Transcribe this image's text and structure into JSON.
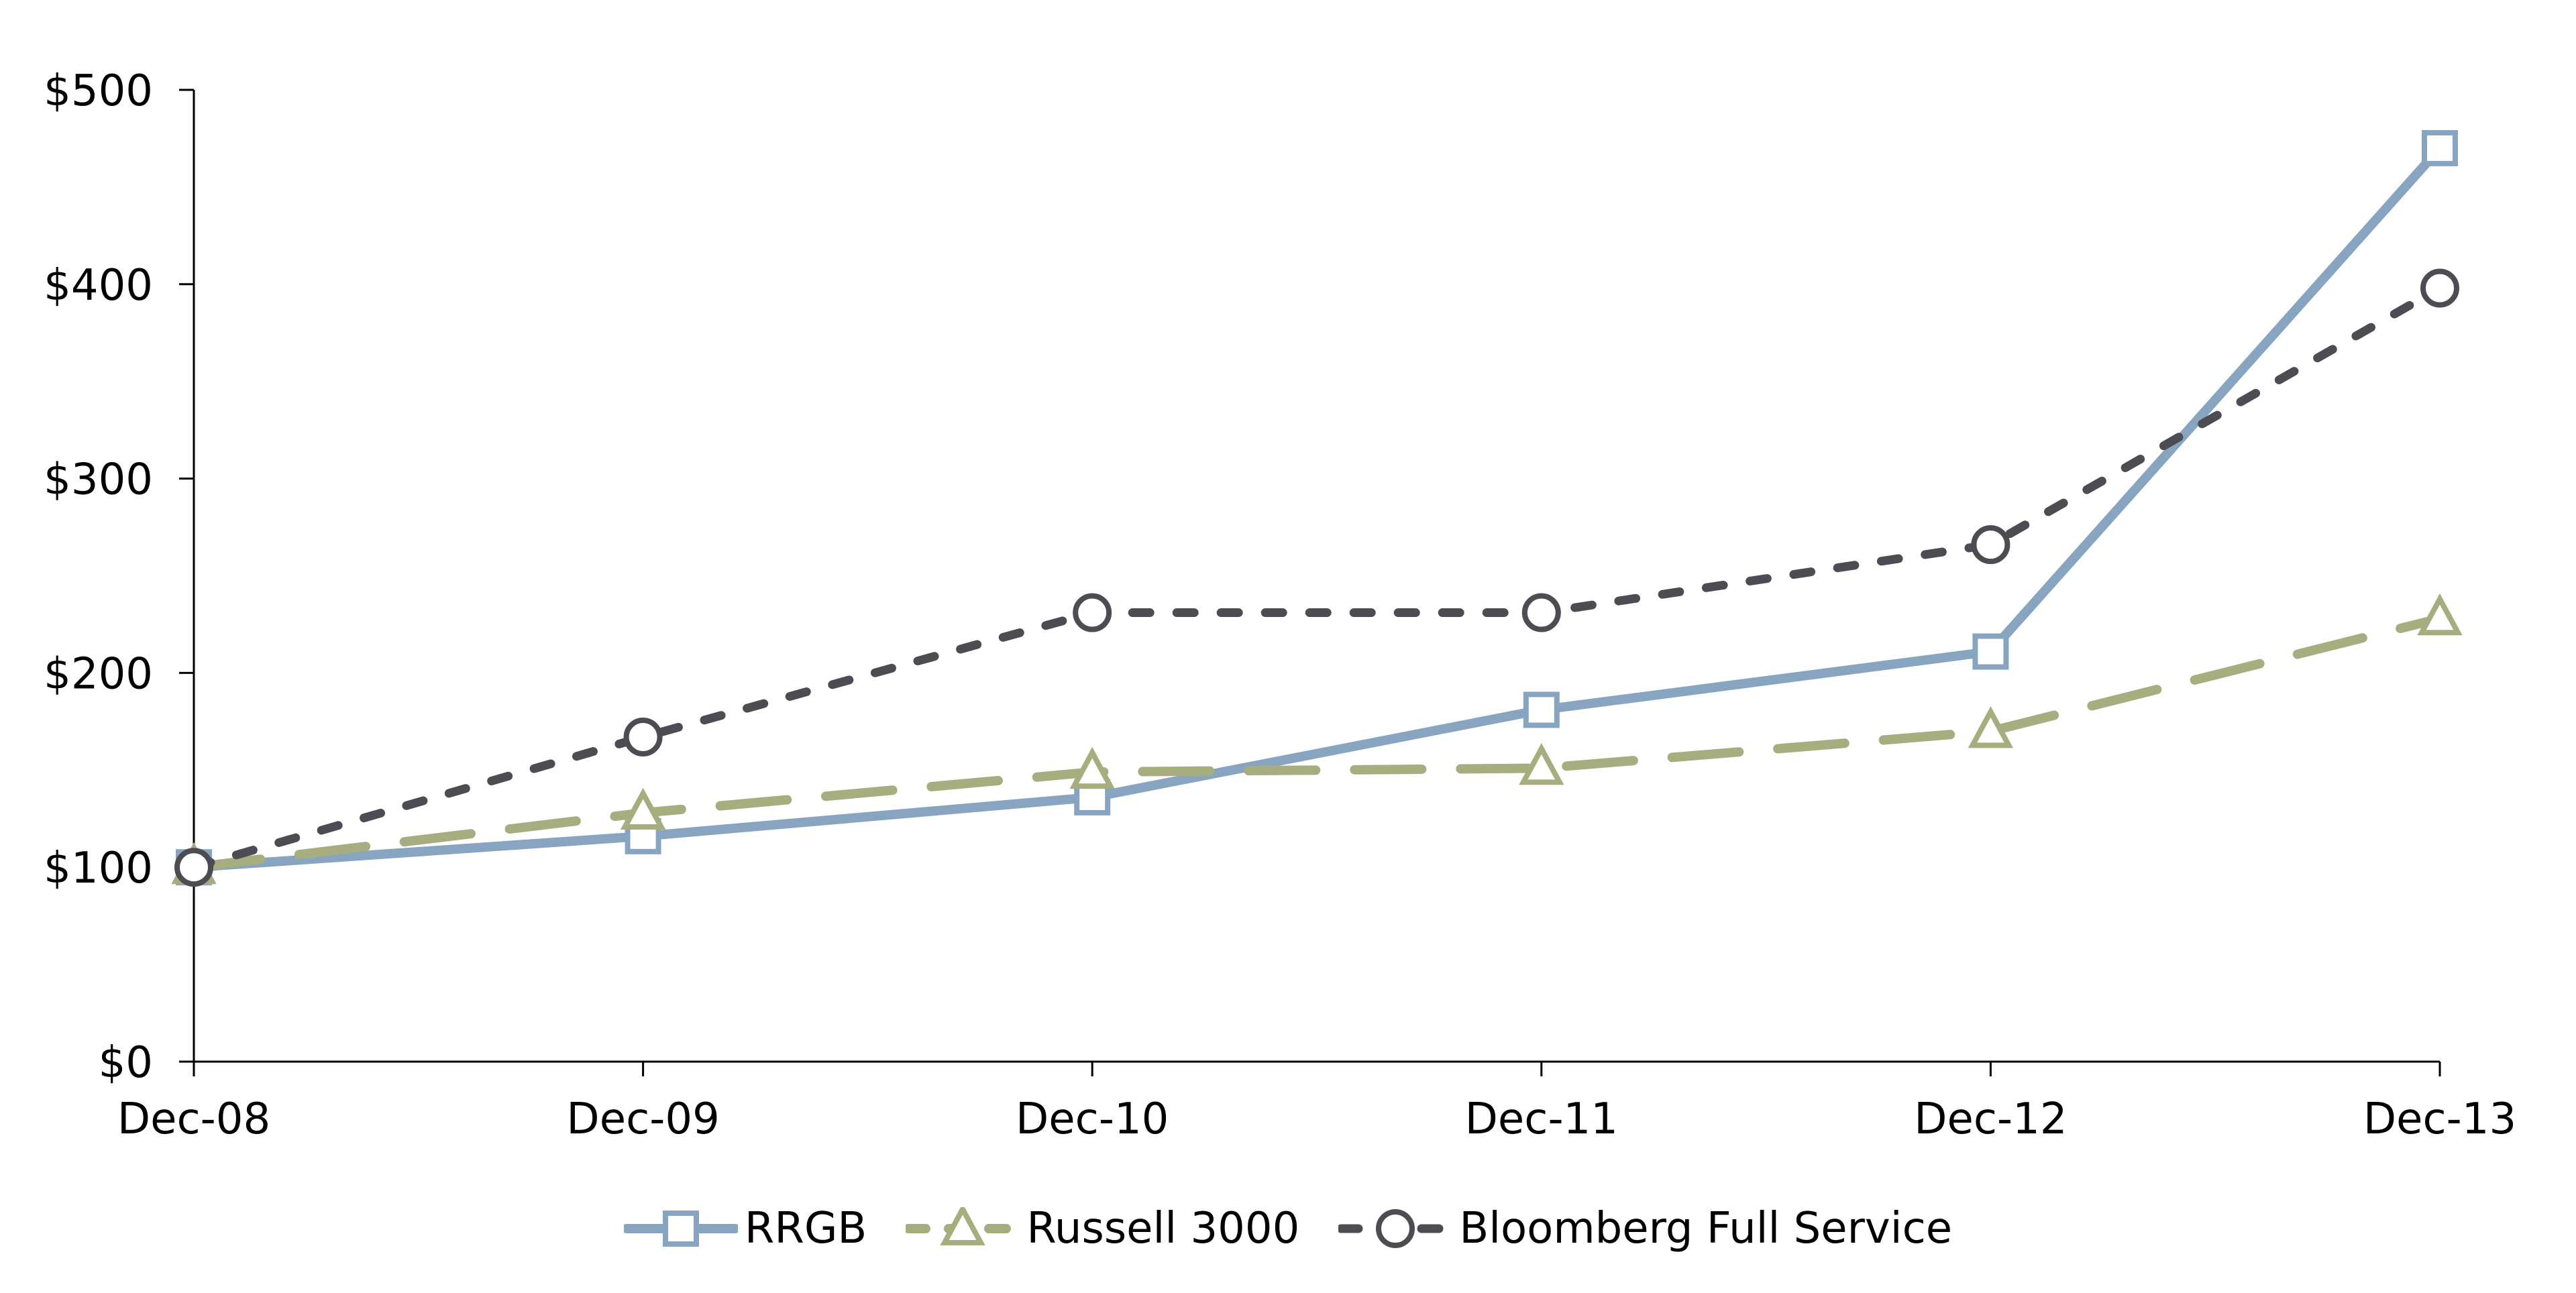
{
  "chart_data": {
    "type": "line",
    "title": "",
    "x_categories": [
      "Dec-08",
      "Dec-09",
      "Dec-10",
      "Dec-11",
      "Dec-12",
      "Dec-13"
    ],
    "y_axis": {
      "min": 0,
      "max": 500,
      "tick_step": 100,
      "tick_labels": [
        "$0",
        "$100",
        "$200",
        "$300",
        "$400",
        "$500"
      ]
    },
    "grid": false,
    "legend_position": "bottom",
    "axis_color": "#000000",
    "marker_fill": "#ffffff",
    "series": [
      {
        "name": "RRGB",
        "color": "#87A5C0",
        "marker": "square",
        "line_style": "solid",
        "line_width": 14,
        "values": [
          100,
          116,
          136,
          181,
          211,
          470
        ]
      },
      {
        "name": "Russell 3000",
        "color": "#A8AD7F",
        "marker": "triangle",
        "line_style": "long-dash",
        "line_width": 14,
        "values": [
          100,
          128,
          149,
          151,
          170,
          228
        ]
      },
      {
        "name": "Bloomberg Full Service",
        "color": "#4C4C52",
        "marker": "circle",
        "line_style": "short-dash",
        "line_width": 13,
        "values": [
          100,
          167,
          231,
          231,
          266,
          398
        ]
      }
    ]
  }
}
